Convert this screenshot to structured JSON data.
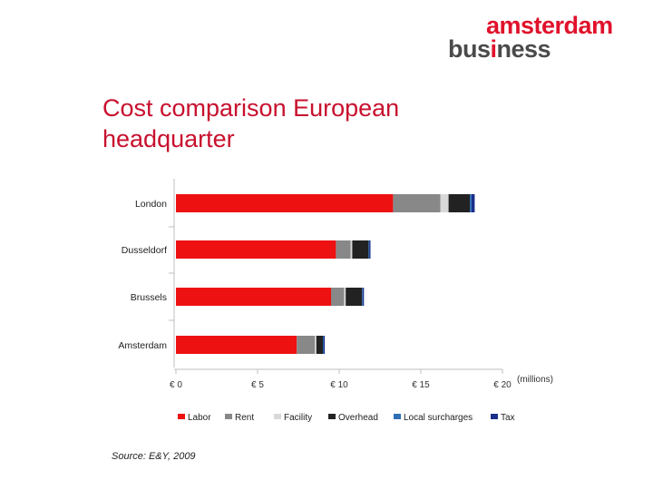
{
  "logo": {
    "line1": "amsterdam",
    "line2_pre": "bus",
    "line2_accent": "i",
    "line2_post": "ness"
  },
  "title": {
    "line1": "Cost comparison European",
    "line2": "headquarter"
  },
  "source": "Source: E&Y, 2009",
  "chart_data": {
    "type": "bar",
    "orientation": "horizontal",
    "stacked": true,
    "categories": [
      "London",
      "Dusseldorf",
      "Brussels",
      "Amsterdam"
    ],
    "series": [
      {
        "name": "Labor",
        "color": "#ee1111",
        "values": [
          13.3,
          9.8,
          9.5,
          7.4
        ]
      },
      {
        "name": "Rent",
        "color": "#888888",
        "values": [
          2.9,
          0.9,
          0.8,
          1.1
        ]
      },
      {
        "name": "Facility",
        "color": "#d9d9d9",
        "values": [
          0.5,
          0.1,
          0.1,
          0.1
        ]
      },
      {
        "name": "Overhead",
        "color": "#222222",
        "values": [
          1.3,
          1.0,
          1.0,
          0.4
        ]
      },
      {
        "name": "Local surcharges",
        "color": "#2e6fb5",
        "values": [
          0.1,
          0.05,
          0.05,
          0.05
        ]
      },
      {
        "name": "Tax",
        "color": "#1a2f8a",
        "values": [
          0.2,
          0.05,
          0.05,
          0.05
        ]
      }
    ],
    "xlim": [
      0,
      20
    ],
    "xticks": [
      {
        "value": 0,
        "label": "€ 0"
      },
      {
        "value": 5,
        "label": "€ 5"
      },
      {
        "value": 10,
        "label": "€ 10"
      },
      {
        "value": 15,
        "label": "€ 15"
      },
      {
        "value": 20,
        "label": "€ 20"
      }
    ],
    "xunit_label": "(millions)",
    "legend_position": "bottom",
    "grid": false
  }
}
